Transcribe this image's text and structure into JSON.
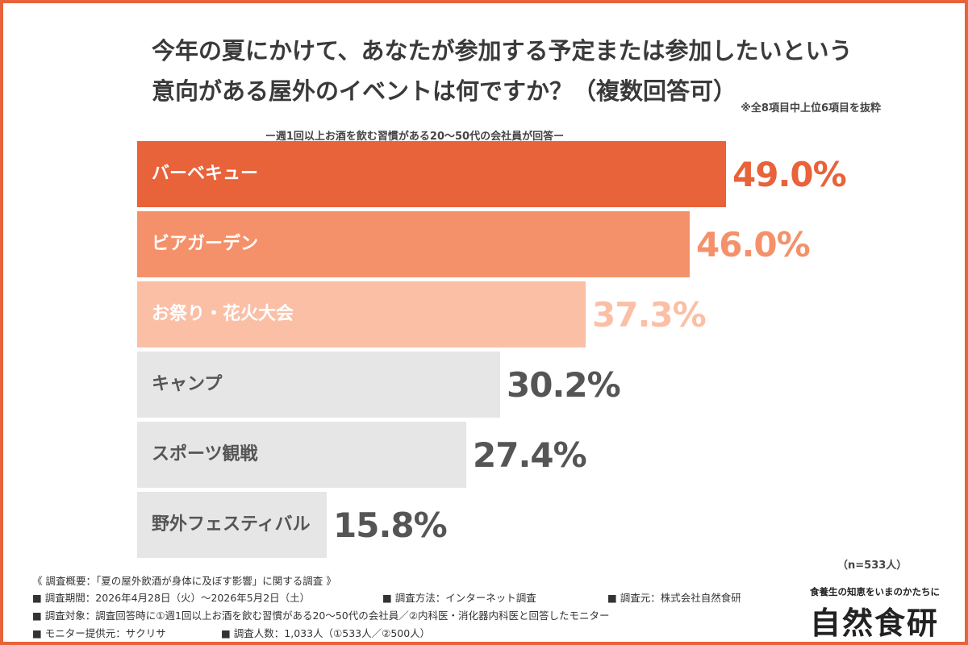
{
  "title_line1": "今年の夏にかけて、あなたが参加する予定または参加したいという",
  "title_line2": "意向がある屋外のイベントは何ですか？（複数回答可）",
  "note_top": "※全8項目中上位6項目を抜粋",
  "subtitle": "ー週1回以上お酒を飲む習慣がある20〜50代の会社員が回答ー",
  "chart_data": {
    "type": "bar",
    "orientation": "horizontal",
    "categories": [
      "バーベキュー",
      "ビアガーデン",
      "お祭り・花火大会",
      "キャンプ",
      "スポーツ観戦",
      "野外フェスティバル"
    ],
    "values": [
      49.0,
      46.0,
      37.3,
      30.2,
      27.4,
      15.8
    ],
    "value_labels": [
      "49.0%",
      "46.0%",
      "37.3%",
      "30.2%",
      "27.4%",
      "15.8%"
    ],
    "unit": "%",
    "xlim": [
      0,
      49.0
    ],
    "colors": [
      "#e8623a",
      "#f5916a",
      "#fbbfa6",
      "#e6e6e6",
      "#e6e6e6",
      "#e6e6e6"
    ],
    "label_colors": [
      "#ffffff",
      "#ffffff",
      "#ffffff",
      "#555555",
      "#555555",
      "#555555"
    ],
    "value_colors": [
      "#e8623a",
      "#f5916a",
      "#fbbfa6",
      "#555555",
      "#555555",
      "#555555"
    ]
  },
  "sample": "（n=533人）",
  "footer": {
    "overview": "《 調査概要：「夏の屋外飲酒が身体に及ぼす影響」に関する調査 》",
    "period": "■ 調査期間：2026年4月28日（火）〜2026年5月2日（土）",
    "method": "■ 調査方法：インターネット調査",
    "source": "■ 調査元：株式会社自然食研",
    "target": "■ 調査対象：調査回答時に①週1回以上お酒を飲む習慣がある20〜50代の会社員／②内科医・消化器内科医と回答したモニター",
    "monitor": "■ モニター提供元：サクリサ",
    "count": "■ 調査人数：1,033人（①533人／②500人）"
  },
  "brand": {
    "tagline": "食養生の知恵をいまのかたちに",
    "name": "自然食研"
  }
}
